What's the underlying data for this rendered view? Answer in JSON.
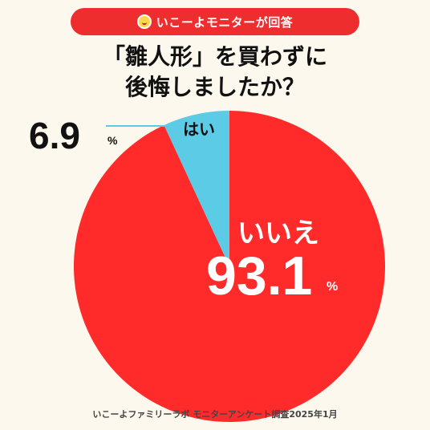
{
  "header": {
    "badge_label": "いこーよモニターが回答"
  },
  "question": {
    "line1": "「雛人形」を買わずに",
    "line2": "後悔しましたか？"
  },
  "footer": {
    "source": "いこーよファミリーラボ モニターアンケート調査2025年1月"
  },
  "colors": {
    "background": "#fdf8ee",
    "accent": "#ee2e2e",
    "no": "#ff2b2b",
    "yes": "#5ccbe6"
  },
  "chart_data": {
    "type": "pie",
    "title": "「雛人形」を買わずに後悔しましたか？",
    "slices": [
      {
        "label": "はい",
        "value": 6.9,
        "display": "6.9",
        "unit": "%",
        "color": "#5ccbe6"
      },
      {
        "label": "いいえ",
        "value": 93.1,
        "display": "93.1",
        "unit": "%",
        "color": "#ff2b2b"
      }
    ]
  }
}
